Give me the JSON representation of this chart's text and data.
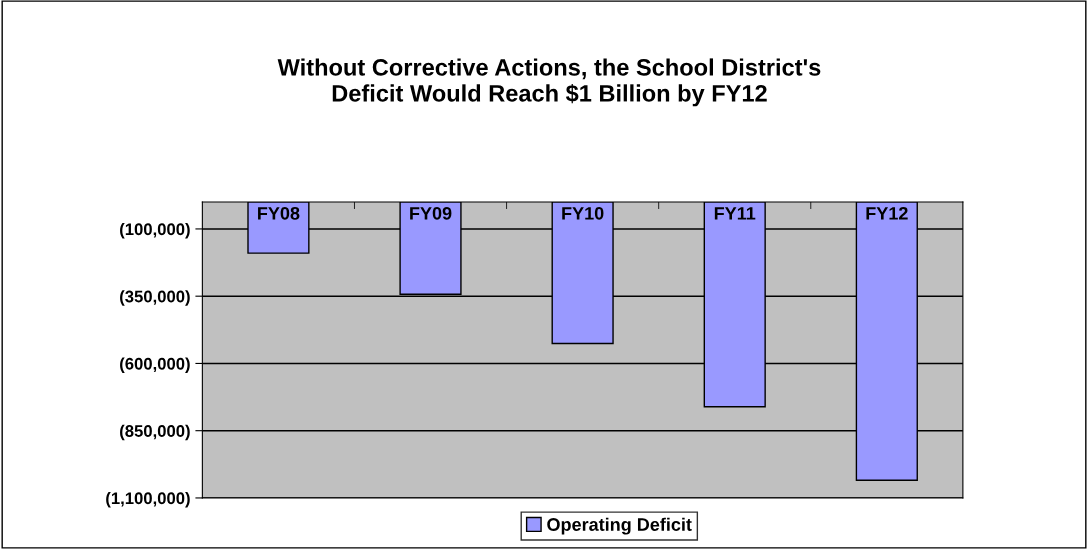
{
  "chart_data": {
    "type": "bar",
    "title": "Without Corrective Actions, the School District's\nDeficit Would Reach $1 Billion by FY12",
    "categories": [
      "FY08",
      "FY09",
      "FY10",
      "FY11",
      "FY12"
    ],
    "series": [
      {
        "name": "Operating Deficit",
        "color": "#9999ff",
        "values": [
          -190000,
          -343000,
          -526000,
          -761000,
          -1034000
        ]
      }
    ],
    "ylim": [
      -1100000,
      0
    ],
    "yticks": [
      {
        "value": -1100000,
        "label": "(1,100,000)"
      },
      {
        "value": -850000,
        "label": "(850,000)"
      },
      {
        "value": -600000,
        "label": "(600,000)"
      },
      {
        "value": -350000,
        "label": "(350,000)"
      },
      {
        "value": -100000,
        "label": "(100,000)"
      }
    ],
    "grid": "y",
    "legend": "bottom"
  }
}
